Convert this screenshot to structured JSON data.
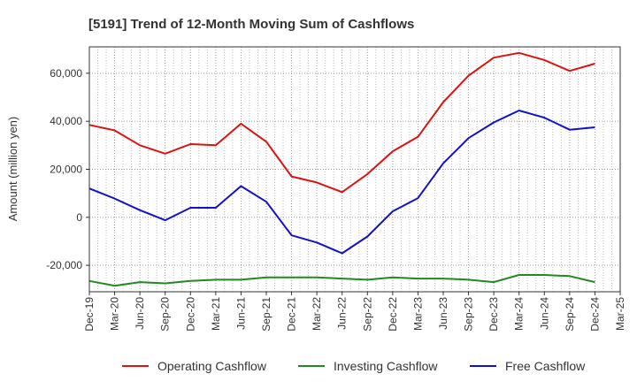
{
  "chart_data": {
    "type": "line",
    "title": "[5191]  Trend of 12-Month Moving Sum of Cashflows",
    "ylabel": "Amount (million yen)",
    "xlabel": "",
    "ylim": [
      -31000,
      71000
    ],
    "yticks": [
      -20000,
      0,
      20000,
      40000,
      60000
    ],
    "ytick_labels": [
      "-20,000",
      "0",
      "20,000",
      "40,000",
      "60,000"
    ],
    "x": [
      "Dec-19",
      "Mar-20",
      "Jun-20",
      "Sep-20",
      "Dec-20",
      "Mar-21",
      "Jun-21",
      "Sep-21",
      "Dec-21",
      "Mar-22",
      "Jun-22",
      "Sep-22",
      "Dec-22",
      "Mar-23",
      "Jun-23",
      "Sep-23",
      "Dec-23",
      "Mar-24",
      "Jun-24",
      "Sep-24",
      "Dec-24",
      "Mar-25"
    ],
    "grid": true,
    "legend_position": "bottom",
    "series": [
      {
        "name": "Operating Cashflow",
        "color": "#dd1111",
        "values": [
          38500,
          36200,
          30000,
          26500,
          30500,
          30000,
          39000,
          31500,
          17000,
          14500,
          10500,
          18000,
          27500,
          33500,
          48000,
          59000,
          66500,
          68500,
          65500,
          61000,
          64000,
          null
        ]
      },
      {
        "name": "Investing Cashflow",
        "color": "#228822",
        "values": [
          -26500,
          -28500,
          -27000,
          -27500,
          -26500,
          -26000,
          -26000,
          -25000,
          -25000,
          -25000,
          -25500,
          -26000,
          -25000,
          -25500,
          -25500,
          -26000,
          -27000,
          -24000,
          -24000,
          -24500,
          -27000,
          null
        ]
      },
      {
        "name": "Free Cashflow",
        "color": "#1111cc",
        "values": [
          12000,
          7800,
          3000,
          -1200,
          4000,
          4000,
          13000,
          6500,
          -7500,
          -10500,
          -15000,
          -8000,
          2500,
          8000,
          22500,
          33000,
          39500,
          44500,
          41500,
          36500,
          37500,
          null
        ]
      }
    ]
  }
}
